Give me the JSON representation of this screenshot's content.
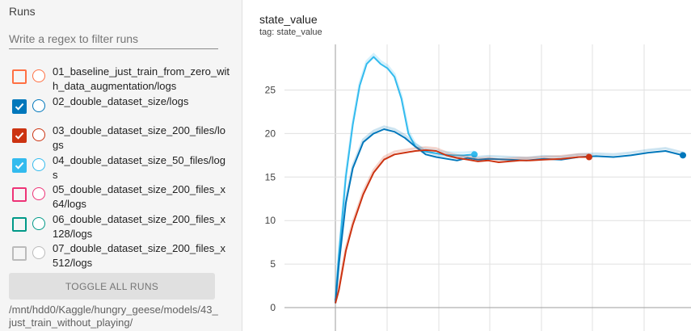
{
  "sidebar": {
    "title": "Runs",
    "filter_placeholder": "Write a regex to filter runs",
    "runs": [
      {
        "label": "01_baseline_just_train_from_zero_with_data_augmentation/logs",
        "checked": false,
        "color": "#ff7043"
      },
      {
        "label": "02_double_dataset_size/logs",
        "checked": true,
        "color": "#0077bb"
      },
      {
        "label": "03_double_dataset_size_200_files/logs",
        "checked": true,
        "color": "#cc3311"
      },
      {
        "label": "04_double_dataset_size_50_files/logs",
        "checked": true,
        "color": "#33bbee"
      },
      {
        "label": "05_double_dataset_size_200_files_x64/logs",
        "checked": false,
        "color": "#ee3377"
      },
      {
        "label": "06_double_dataset_size_200_files_x128/logs",
        "checked": false,
        "color": "#009988"
      },
      {
        "label": "07_double_dataset_size_200_files_x512/logs",
        "checked": false,
        "color": "#bbbbbb"
      }
    ],
    "toggle_label": "TOGGLE ALL RUNS",
    "logdir": "/mnt/hdd0/Kaggle/hungry_geese/models/43_just_train_without_playing/"
  },
  "chart": {
    "title": "state_value",
    "tag": "tag: state_value"
  },
  "chart_data": {
    "type": "line",
    "title": "state_value",
    "subtitle": "tag: state_value",
    "ylim": [
      0,
      30
    ],
    "xlim": [
      0,
      100
    ],
    "yticks": [
      0,
      5,
      10,
      15,
      20,
      25
    ],
    "grid": true,
    "series": [
      {
        "name": "04_double_dataset_size_50_files/logs",
        "color": "#33bbee",
        "x": [
          0,
          1,
          3,
          5,
          7,
          9,
          11,
          13,
          15,
          17,
          19,
          21,
          23,
          25,
          28,
          31,
          34,
          37,
          40
        ],
        "y": [
          0.5,
          6,
          15,
          21,
          25.5,
          28,
          28.8,
          28,
          27.5,
          26.5,
          24,
          20,
          18.5,
          18,
          17.8,
          17.6,
          17.5,
          17.5,
          17.6
        ]
      },
      {
        "name": "02_double_dataset_size/logs",
        "color": "#0077bb",
        "x": [
          0,
          1,
          3,
          5,
          8,
          11,
          14,
          17,
          20,
          23,
          26,
          29,
          32,
          35,
          38,
          41,
          44,
          50,
          55,
          60,
          65,
          70,
          75,
          80,
          85,
          90,
          95,
          100
        ],
        "y": [
          0.5,
          5,
          12,
          16,
          19,
          20,
          20.5,
          20.2,
          19.5,
          18.5,
          17.6,
          17.3,
          17.1,
          16.9,
          17.2,
          17.0,
          17.1,
          17.0,
          16.9,
          17.1,
          17.0,
          17.3,
          17.4,
          17.3,
          17.5,
          17.8,
          18.0,
          17.5
        ]
      },
      {
        "name": "03_double_dataset_size_200_files/logs",
        "color": "#cc3311",
        "x": [
          0,
          1,
          3,
          5,
          8,
          11,
          14,
          17,
          20,
          23,
          26,
          29,
          32,
          35,
          38,
          41,
          44,
          47,
          50,
          53,
          56,
          60,
          65,
          70,
          73
        ],
        "y": [
          0.5,
          2,
          6.5,
          9.5,
          13,
          15.5,
          17,
          17.6,
          17.8,
          18.0,
          18.1,
          18.0,
          17.5,
          17.2,
          17.0,
          16.8,
          16.9,
          16.7,
          16.8,
          16.9,
          16.9,
          17.0,
          17.1,
          17.3,
          17.3
        ]
      }
    ]
  }
}
